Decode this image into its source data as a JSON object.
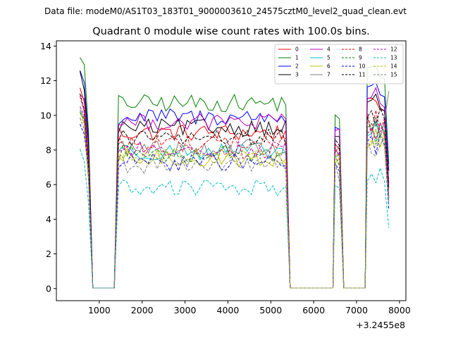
{
  "chart_data": {
    "type": "line",
    "suptitle": "Data file: modeM0/AS1T03_183T01_9000003610_24575cztM0_level2_quad_clean.evt",
    "title": "Quadrant 0 module wise count rates with 100.0s bins.",
    "xlabel": "",
    "ylabel": "",
    "x_offset_label": "+3.2455e8",
    "xlim": [
      0,
      8150
    ],
    "ylim": [
      -0.7,
      14.3
    ],
    "xticks": [
      1000,
      2000,
      3000,
      4000,
      5000,
      6000,
      7000,
      8000
    ],
    "xtick_labels": [
      "1000",
      "2000",
      "3000",
      "4000",
      "5000",
      "6000",
      "7000",
      "8000"
    ],
    "yticks": [
      0,
      2,
      4,
      6,
      8,
      10,
      12,
      14
    ],
    "ytick_labels": [
      "0",
      "2",
      "4",
      "6",
      "8",
      "10",
      "12",
      "14"
    ],
    "grid": false,
    "legend": {
      "placement": "top-right",
      "columns": 4
    },
    "time_segments": [
      {
        "start": 500,
        "end": 800,
        "kind": "on"
      },
      {
        "start": 800,
        "end": 1400,
        "kind": "off"
      },
      {
        "start": 1400,
        "end": 5400,
        "kind": "on"
      },
      {
        "start": 5400,
        "end": 6450,
        "kind": "off"
      },
      {
        "start": 6450,
        "end": 6650,
        "kind": "on"
      },
      {
        "start": 6650,
        "end": 7200,
        "kind": "off"
      },
      {
        "start": 7200,
        "end": 7800,
        "kind": "on"
      }
    ],
    "series": [
      {
        "name": "0",
        "color": "#ff0000",
        "dash": false,
        "level": 9.0,
        "start_value": 11.5,
        "end_value": 5.2
      },
      {
        "name": "1",
        "color": "#008000",
        "dash": false,
        "level": 10.7,
        "start_value": 13.5,
        "end_value": 7.2
      },
      {
        "name": "2",
        "color": "#0000ff",
        "dash": false,
        "level": 9.9,
        "start_value": 12.6,
        "end_value": 6.8
      },
      {
        "name": "3",
        "color": "#000000",
        "dash": false,
        "level": 9.3,
        "start_value": 12.4,
        "end_value": 6.1
      },
      {
        "name": "4",
        "color": "#bf00bf",
        "dash": false,
        "level": 9.6,
        "start_value": 11.3,
        "end_value": 6.0
      },
      {
        "name": "5",
        "color": "#00bfbf",
        "dash": false,
        "level": 7.9,
        "start_value": 10.2,
        "end_value": 5.2
      },
      {
        "name": "6",
        "color": "#bfbf00",
        "dash": false,
        "level": 7.5,
        "start_value": 10.0,
        "end_value": 5.0
      },
      {
        "name": "7",
        "color": "#808080",
        "dash": false,
        "level": 8.1,
        "start_value": 10.4,
        "end_value": 11.4
      },
      {
        "name": "8",
        "color": "#ff0000",
        "dash": true,
        "level": 8.4,
        "start_value": 11.0,
        "end_value": 5.6
      },
      {
        "name": "9",
        "color": "#008000",
        "dash": true,
        "level": 7.8,
        "start_value": 10.3,
        "end_value": 5.3
      },
      {
        "name": "10",
        "color": "#0000ff",
        "dash": true,
        "level": 7.3,
        "start_value": 9.5,
        "end_value": 4.6
      },
      {
        "name": "11",
        "color": "#000000",
        "dash": true,
        "level": 8.7,
        "start_value": 11.1,
        "end_value": 5.8
      },
      {
        "name": "12",
        "color": "#bf00bf",
        "dash": true,
        "level": 8.0,
        "start_value": 10.6,
        "end_value": 5.3
      },
      {
        "name": "13",
        "color": "#00bfbf",
        "dash": true,
        "level": 5.8,
        "start_value": 8.0,
        "end_value": 3.5
      },
      {
        "name": "14",
        "color": "#bfbf00",
        "dash": true,
        "level": 7.6,
        "start_value": 10.0,
        "end_value": 5.1
      },
      {
        "name": "15",
        "color": "#808080",
        "dash": true,
        "level": 7.1,
        "start_value": 9.9,
        "end_value": 4.9
      }
    ]
  }
}
